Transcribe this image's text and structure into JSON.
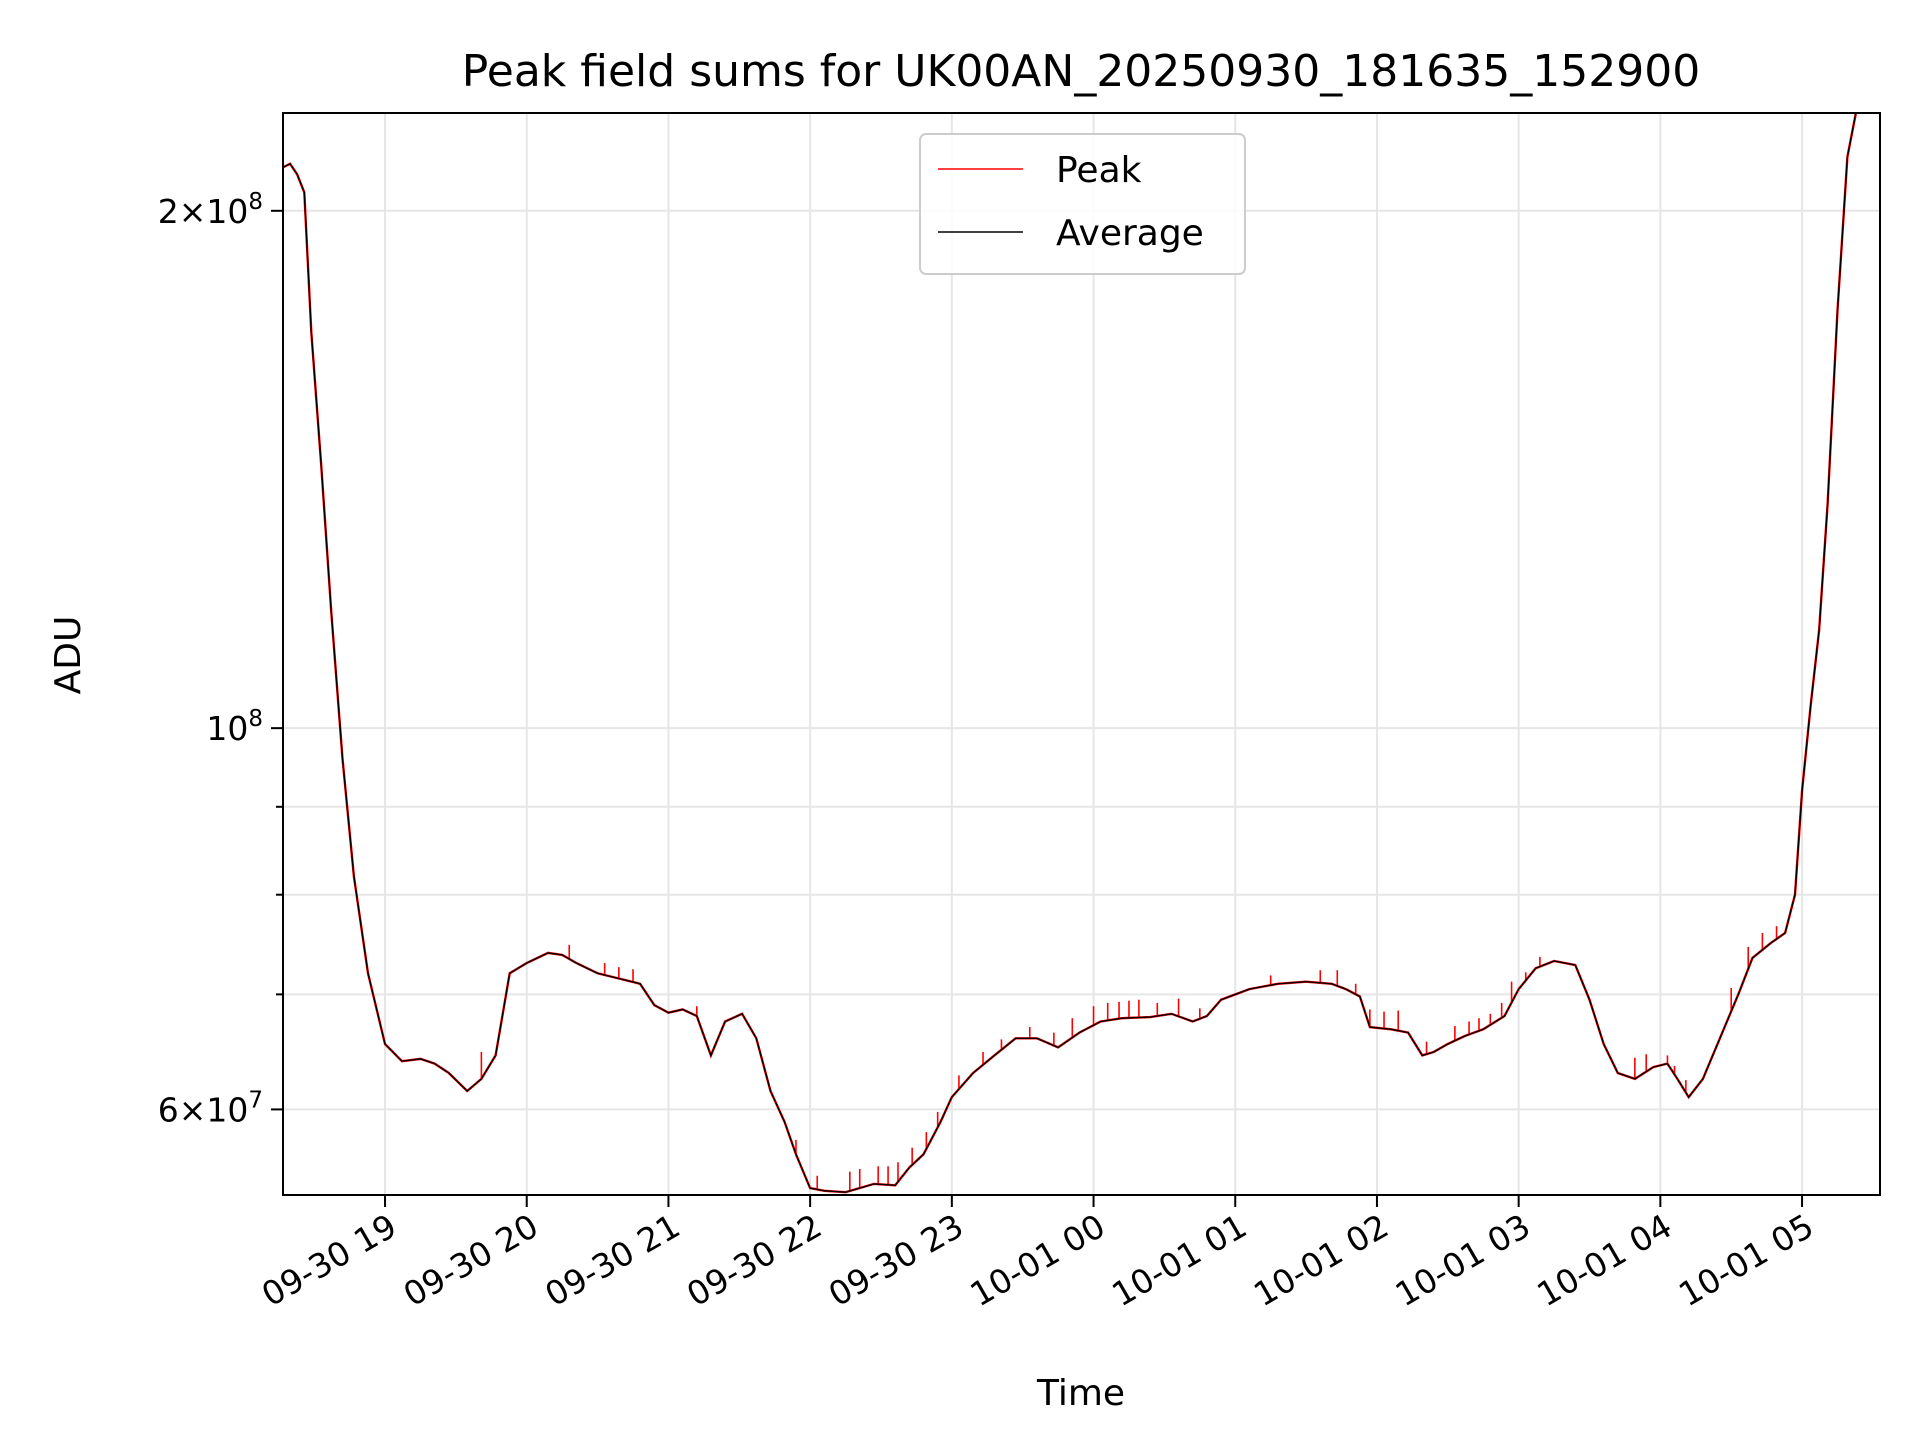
{
  "chart_data": {
    "type": "line",
    "title": "Peak field sums for UK00AN_20250930_181635_152900",
    "xlabel": "Time",
    "ylabel": "ADU",
    "yscale": "log",
    "xlim": [
      18.28,
      29.55
    ],
    "ylim": [
      53500000,
      228000000
    ],
    "x_unit": "hours since 2025-09-30 00:00",
    "grid": true,
    "legend_position": "upper-center",
    "x_ticks": [
      {
        "value": 19,
        "label": "09-30 19"
      },
      {
        "value": 20,
        "label": "09-30 20"
      },
      {
        "value": 21,
        "label": "09-30 21"
      },
      {
        "value": 22,
        "label": "09-30 22"
      },
      {
        "value": 23,
        "label": "09-30 23"
      },
      {
        "value": 24,
        "label": "10-01 00"
      },
      {
        "value": 25,
        "label": "10-01 01"
      },
      {
        "value": 26,
        "label": "10-01 02"
      },
      {
        "value": 27,
        "label": "10-01 03"
      },
      {
        "value": 28,
        "label": "10-01 04"
      },
      {
        "value": 29,
        "label": "10-01 05"
      }
    ],
    "y_ticks_major": [
      {
        "value": 60000000,
        "base": "6",
        "exp": "7"
      },
      {
        "value": 100000000,
        "base": "",
        "exp": "8"
      },
      {
        "value": 200000000,
        "base": "2",
        "exp": "8"
      }
    ],
    "y_ticks_minor": [
      70000000,
      80000000,
      90000000
    ],
    "series": [
      {
        "name": "Average",
        "color": "#000000",
        "points": [
          [
            18.28,
            212000000
          ],
          [
            18.33,
            213000000
          ],
          [
            18.38,
            210000000
          ],
          [
            18.43,
            205000000
          ],
          [
            18.48,
            170000000
          ],
          [
            18.55,
            142000000
          ],
          [
            18.62,
            117000000
          ],
          [
            18.7,
            96000000
          ],
          [
            18.78,
            82000000
          ],
          [
            18.88,
            72000000
          ],
          [
            19.0,
            65500000
          ],
          [
            19.12,
            64000000
          ],
          [
            19.25,
            64200000
          ],
          [
            19.35,
            63800000
          ],
          [
            19.45,
            63000000
          ],
          [
            19.58,
            61500000
          ],
          [
            19.68,
            62500000
          ],
          [
            19.78,
            64500000
          ],
          [
            19.88,
            72000000
          ],
          [
            20.0,
            73000000
          ],
          [
            20.15,
            74000000
          ],
          [
            20.25,
            73800000
          ],
          [
            20.35,
            73000000
          ],
          [
            20.5,
            72000000
          ],
          [
            20.65,
            71500000
          ],
          [
            20.8,
            71000000
          ],
          [
            20.9,
            69000000
          ],
          [
            21.0,
            68300000
          ],
          [
            21.1,
            68600000
          ],
          [
            21.2,
            68000000
          ],
          [
            21.3,
            64500000
          ],
          [
            21.4,
            67500000
          ],
          [
            21.52,
            68200000
          ],
          [
            21.62,
            66000000
          ],
          [
            21.72,
            61500000
          ],
          [
            21.82,
            59000000
          ],
          [
            21.9,
            56500000
          ],
          [
            22.0,
            54000000
          ],
          [
            22.1,
            53800000
          ],
          [
            22.25,
            53700000
          ],
          [
            22.45,
            54300000
          ],
          [
            22.6,
            54200000
          ],
          [
            22.7,
            55500000
          ],
          [
            22.8,
            56500000
          ],
          [
            22.92,
            59000000
          ],
          [
            23.0,
            61000000
          ],
          [
            23.15,
            63000000
          ],
          [
            23.3,
            64500000
          ],
          [
            23.45,
            66000000
          ],
          [
            23.6,
            66000000
          ],
          [
            23.75,
            65200000
          ],
          [
            23.9,
            66500000
          ],
          [
            24.05,
            67500000
          ],
          [
            24.2,
            67800000
          ],
          [
            24.4,
            67900000
          ],
          [
            24.55,
            68200000
          ],
          [
            24.7,
            67500000
          ],
          [
            24.8,
            68000000
          ],
          [
            24.9,
            69500000
          ],
          [
            25.1,
            70500000
          ],
          [
            25.3,
            71000000
          ],
          [
            25.5,
            71200000
          ],
          [
            25.68,
            71000000
          ],
          [
            25.78,
            70500000
          ],
          [
            25.88,
            69800000
          ],
          [
            25.95,
            67000000
          ],
          [
            26.1,
            66800000
          ],
          [
            26.22,
            66500000
          ],
          [
            26.32,
            64500000
          ],
          [
            26.4,
            64800000
          ],
          [
            26.5,
            65500000
          ],
          [
            26.62,
            66200000
          ],
          [
            26.75,
            66800000
          ],
          [
            26.9,
            68000000
          ],
          [
            27.0,
            70500000
          ],
          [
            27.12,
            72500000
          ],
          [
            27.25,
            73200000
          ],
          [
            27.4,
            72800000
          ],
          [
            27.5,
            69500000
          ],
          [
            27.6,
            65500000
          ],
          [
            27.7,
            63000000
          ],
          [
            27.82,
            62500000
          ],
          [
            27.95,
            63500000
          ],
          [
            28.05,
            63800000
          ],
          [
            28.12,
            62500000
          ],
          [
            28.2,
            61000000
          ],
          [
            28.3,
            62500000
          ],
          [
            28.42,
            66000000
          ],
          [
            28.55,
            70000000
          ],
          [
            28.65,
            73500000
          ],
          [
            28.78,
            75000000
          ],
          [
            28.88,
            76000000
          ],
          [
            28.95,
            80000000
          ],
          [
            29.0,
            92000000
          ],
          [
            29.06,
            103000000
          ],
          [
            29.12,
            114000000
          ],
          [
            29.18,
            135000000
          ],
          [
            29.25,
            175000000
          ],
          [
            29.32,
            215000000
          ],
          [
            29.38,
            228000000
          ]
        ]
      },
      {
        "name": "Peak",
        "color": "#ff0000",
        "spikes": [
          [
            19.68,
            64800000
          ],
          [
            20.3,
            74800000
          ],
          [
            20.55,
            73000000
          ],
          [
            20.65,
            72600000
          ],
          [
            20.75,
            72400000
          ],
          [
            21.2,
            68900000
          ],
          [
            21.9,
            57600000
          ],
          [
            22.05,
            54900000
          ],
          [
            22.28,
            55200000
          ],
          [
            22.35,
            55400000
          ],
          [
            22.48,
            55600000
          ],
          [
            22.55,
            55600000
          ],
          [
            22.62,
            55900000
          ],
          [
            22.72,
            57000000
          ],
          [
            22.82,
            58200000
          ],
          [
            22.9,
            59800000
          ],
          [
            23.05,
            62800000
          ],
          [
            23.22,
            64800000
          ],
          [
            23.35,
            65900000
          ],
          [
            23.55,
            67000000
          ],
          [
            23.72,
            66500000
          ],
          [
            23.85,
            67800000
          ],
          [
            24.0,
            68900000
          ],
          [
            24.1,
            69200000
          ],
          [
            24.18,
            69300000
          ],
          [
            24.25,
            69400000
          ],
          [
            24.32,
            69500000
          ],
          [
            24.45,
            69200000
          ],
          [
            24.6,
            69600000
          ],
          [
            24.75,
            68700000
          ],
          [
            25.25,
            71800000
          ],
          [
            25.6,
            72300000
          ],
          [
            25.72,
            72300000
          ],
          [
            25.85,
            71000000
          ],
          [
            25.95,
            68600000
          ],
          [
            26.05,
            68400000
          ],
          [
            26.15,
            68500000
          ],
          [
            26.35,
            65700000
          ],
          [
            26.55,
            67100000
          ],
          [
            26.65,
            67500000
          ],
          [
            26.72,
            67800000
          ],
          [
            26.8,
            68200000
          ],
          [
            26.88,
            69200000
          ],
          [
            26.95,
            71200000
          ],
          [
            27.05,
            72100000
          ],
          [
            27.15,
            73600000
          ],
          [
            27.82,
            64300000
          ],
          [
            27.9,
            64600000
          ],
          [
            28.05,
            64500000
          ],
          [
            28.1,
            63600000
          ],
          [
            28.18,
            62400000
          ],
          [
            28.5,
            70600000
          ],
          [
            28.62,
            74600000
          ],
          [
            28.72,
            76000000
          ],
          [
            28.82,
            76700000
          ],
          [
            28.92,
            78500000
          ]
        ]
      }
    ]
  }
}
